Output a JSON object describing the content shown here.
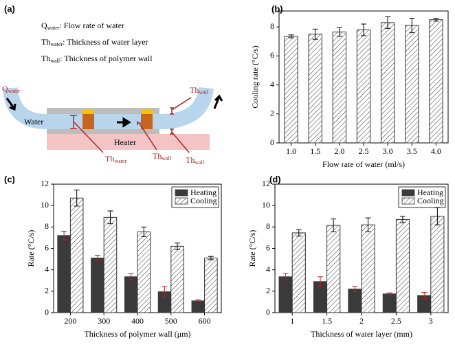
{
  "diagram": {
    "label": "(a)",
    "legend": [
      {
        "symbol": "Q",
        "sub": "water",
        "desc": ": Flow rate of water"
      },
      {
        "symbol": "Th",
        "sub": "water",
        "desc": ": Thickness of water layer"
      },
      {
        "symbol": "Th",
        "sub": "wall",
        "desc": ": Thickness of polymer wall"
      }
    ],
    "water": "Water",
    "heater": "Heater",
    "inlet": {
      "symbol": "Q",
      "sub": "water"
    },
    "wall_top": {
      "symbol": "Th",
      "sub": "wall"
    },
    "water_layer": {
      "symbol": "Th",
      "sub": "water"
    },
    "wall_mid": {
      "symbol": "Th",
      "sub": "wall"
    },
    "wall_bottom": {
      "symbol": "Th",
      "sub": "wall"
    }
  },
  "chart_data": [
    {
      "type": "bar",
      "label": "(b)",
      "xlabel": "Flow rate of water (ml/s)",
      "ylabel": "Cooling rate (°C/s)",
      "categories": [
        "1.0",
        "1.5",
        "2.0",
        "2.5",
        "3.0",
        "3.5",
        "4.0"
      ],
      "values": [
        7.35,
        7.5,
        7.65,
        7.8,
        8.3,
        8.1,
        8.5
      ],
      "errors": [
        0.1,
        0.35,
        0.3,
        0.4,
        0.4,
        0.5,
        0.1
      ],
      "color": "#333333",
      "hatch": true,
      "error_color": "#000000",
      "ylim": [
        0,
        9.1
      ],
      "yticks": [
        0,
        2,
        4,
        6,
        8
      ]
    },
    {
      "type": "bar",
      "label": "(c)",
      "xlabel": "Thickness of polymer wall (μm)",
      "ylabel": "Rate (°C/s)",
      "categories": [
        "200",
        "300",
        "400",
        "500",
        "600"
      ],
      "series": [
        {
          "name": "Heating",
          "color": "#3a3a3a",
          "hatch": false,
          "error_color": "#b22222",
          "values": [
            7.2,
            5.1,
            3.35,
            1.95,
            1.1
          ],
          "errors": [
            0.4,
            0.25,
            0.3,
            0.5,
            0.1
          ]
        },
        {
          "name": "Cooling",
          "color": "#333333",
          "hatch": true,
          "error_color": "#000000",
          "values": [
            10.7,
            8.9,
            7.55,
            6.2,
            5.1
          ],
          "errors": [
            0.75,
            0.6,
            0.45,
            0.3,
            0.15
          ]
        }
      ],
      "ylim": [
        0,
        12
      ],
      "yticks": [
        0,
        2,
        4,
        6,
        8,
        10,
        12
      ],
      "legend": "upper right"
    },
    {
      "type": "bar",
      "label": "(d)",
      "xlabel": "Thickness of water layer (mm)",
      "ylabel": "Rate (°C/s)",
      "categories": [
        "1",
        "1.5",
        "2",
        "2.5",
        "3"
      ],
      "series": [
        {
          "name": "Heating",
          "color": "#3a3a3a",
          "hatch": false,
          "error_color": "#b22222",
          "values": [
            3.35,
            2.9,
            2.2,
            1.75,
            1.6
          ],
          "errors": [
            0.3,
            0.45,
            0.25,
            0.1,
            0.3
          ]
        },
        {
          "name": "Cooling",
          "color": "#333333",
          "hatch": true,
          "error_color": "#000000",
          "values": [
            7.45,
            8.15,
            8.2,
            8.7,
            9.0
          ],
          "errors": [
            0.3,
            0.6,
            0.65,
            0.3,
            0.8
          ]
        }
      ],
      "ylim": [
        0,
        12
      ],
      "yticks": [
        0,
        2,
        4,
        6,
        8,
        10,
        12
      ],
      "legend": "upper right"
    }
  ]
}
